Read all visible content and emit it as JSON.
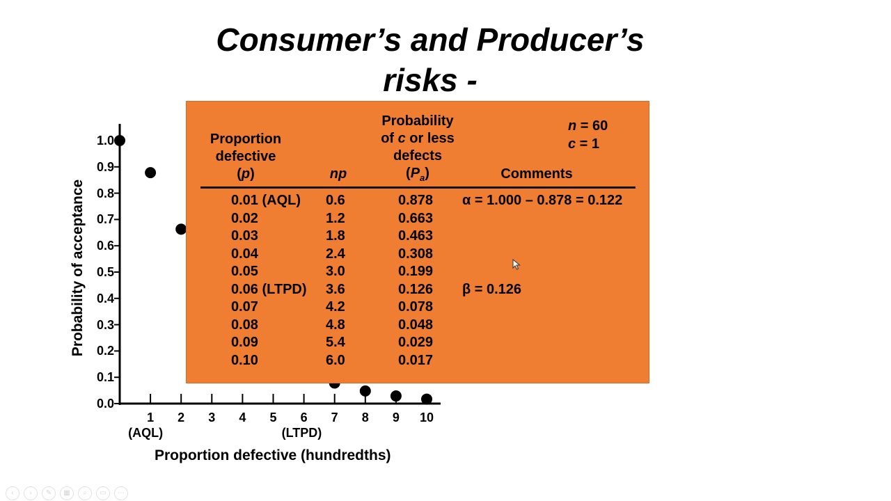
{
  "slide": {
    "title_line1": "Consumer’s and Producer’s",
    "title_line2": "risks -"
  },
  "chart_data": {
    "type": "scatter",
    "ylabel": "Probability of acceptance",
    "xlabel": "Proportion defective (hundredths)",
    "ylim": [
      0.0,
      1.0
    ],
    "xlim": [
      0,
      10
    ],
    "yticks": [
      "0.0",
      "0.1",
      "0.2",
      "0.3",
      "0.4",
      "0.5",
      "0.6",
      "0.7",
      "0.8",
      "0.9",
      "1.0"
    ],
    "xticks": [
      "1",
      "2",
      "3",
      "4",
      "5",
      "6",
      "7",
      "8",
      "9",
      "10"
    ],
    "xtick_annotations": [
      {
        "at": "1",
        "text": "(AQL)"
      },
      {
        "at": "6",
        "text": "(LTPD)"
      }
    ],
    "points_x": [
      0,
      1,
      2,
      3,
      4,
      5,
      6,
      7,
      8,
      9,
      10
    ],
    "points_y": [
      1.0,
      0.878,
      0.663,
      0.463,
      0.308,
      0.199,
      0.126,
      0.078,
      0.048,
      0.029,
      0.017
    ],
    "marker_color": "#000000"
  },
  "table": {
    "panel_color": "#ef7d32",
    "header_proportion": [
      "Proportion",
      "defective",
      "(p)"
    ],
    "header_np": "np",
    "header_probability": [
      "Probability",
      "of c or less",
      "defects",
      "(Pa)"
    ],
    "header_comments": "Comments",
    "param_n": "n = 60",
    "param_c": "c = 1",
    "rows": [
      {
        "p": "0.01 (AQL)",
        "np": "0.6",
        "pa": "0.878",
        "comment": "α = 1.000 – 0.878 = 0.122"
      },
      {
        "p": "0.02",
        "np": "1.2",
        "pa": "0.663",
        "comment": ""
      },
      {
        "p": "0.03",
        "np": "1.8",
        "pa": "0.463",
        "comment": ""
      },
      {
        "p": "0.04",
        "np": "2.4",
        "pa": "0.308",
        "comment": ""
      },
      {
        "p": "0.05",
        "np": "3.0",
        "pa": "0.199",
        "comment": ""
      },
      {
        "p": "0.06 (LTPD)",
        "np": "3.6",
        "pa": "0.126",
        "comment": "β = 0.126"
      },
      {
        "p": "0.07",
        "np": "4.2",
        "pa": "0.078",
        "comment": ""
      },
      {
        "p": "0.08",
        "np": "4.8",
        "pa": "0.048",
        "comment": ""
      },
      {
        "p": "0.09",
        "np": "5.4",
        "pa": "0.029",
        "comment": ""
      },
      {
        "p": "0.10",
        "np": "6.0",
        "pa": "0.017",
        "comment": ""
      }
    ]
  },
  "toolbar_icons": [
    "back-icon",
    "forward-icon",
    "pen-icon",
    "slides-icon",
    "zoom-icon",
    "subtitles-icon",
    "more-icon"
  ]
}
